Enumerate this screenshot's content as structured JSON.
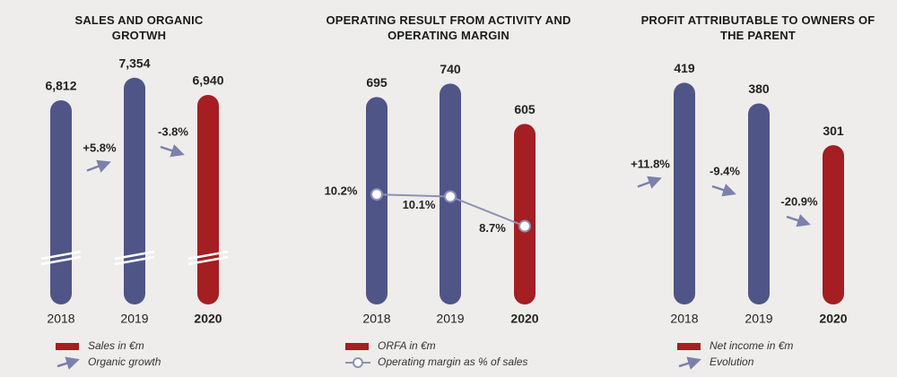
{
  "chart_data": [
    {
      "type": "bar",
      "title": "SALES AND ORGANIC GROTWH",
      "categories": [
        "2018",
        "2019",
        "2020"
      ],
      "ylim": [
        1900,
        7500
      ],
      "axis_break": true,
      "series": [
        {
          "name": "Sales in €m",
          "color": "#a41e22",
          "bar_colors": [
            "#4f5586",
            "#4f5586",
            "#a41e22"
          ],
          "values": [
            6812,
            7354,
            6940
          ],
          "value_labels": [
            "6,812",
            "7,354",
            "6,940"
          ]
        },
        {
          "name": "Organic growth",
          "type": "arrow",
          "color": "#7c80ad",
          "values": [
            null,
            5.8,
            -3.8
          ],
          "value_labels": [
            null,
            "+5.8%",
            "-3.8%"
          ]
        }
      ]
    },
    {
      "type": "bar",
      "title": "OPERATING RESULT FROM ACTIVITY AND OPERATING MARGIN",
      "categories": [
        "2018",
        "2019",
        "2020"
      ],
      "ylim": [
        0,
        780
      ],
      "y2lim": [
        5,
        16
      ],
      "series": [
        {
          "name": "ORFA in €m",
          "color": "#a41e22",
          "bar_colors": [
            "#4f5586",
            "#4f5586",
            "#a41e22"
          ],
          "values": [
            695,
            740,
            605
          ],
          "value_labels": [
            "695",
            "740",
            "605"
          ]
        },
        {
          "name": "Operating margin as % of sales",
          "type": "line",
          "axis": "y2",
          "color": "#8c91b8",
          "values": [
            10.2,
            10.1,
            8.7
          ],
          "value_labels": [
            "10.2%",
            "10.1%",
            "8.7%"
          ]
        }
      ]
    },
    {
      "type": "bar",
      "title": "PROFIT ATTRIBUTABLE TO OWNERS OF THE PARENT",
      "categories": [
        "2018",
        "2019",
        "2020"
      ],
      "ylim": [
        0,
        440
      ],
      "series": [
        {
          "name": "Net income in €m",
          "color": "#a41e22",
          "bar_colors": [
            "#4f5586",
            "#4f5586",
            "#a41e22"
          ],
          "values": [
            419,
            380,
            301
          ],
          "value_labels": [
            "419",
            "380",
            "301"
          ]
        },
        {
          "name": "Evolution",
          "type": "arrow",
          "color": "#7c80ad",
          "values": [
            11.8,
            -9.4,
            -20.9
          ],
          "value_labels": [
            "+11.8%",
            "-9.4%",
            "-20.9%"
          ]
        }
      ]
    }
  ]
}
